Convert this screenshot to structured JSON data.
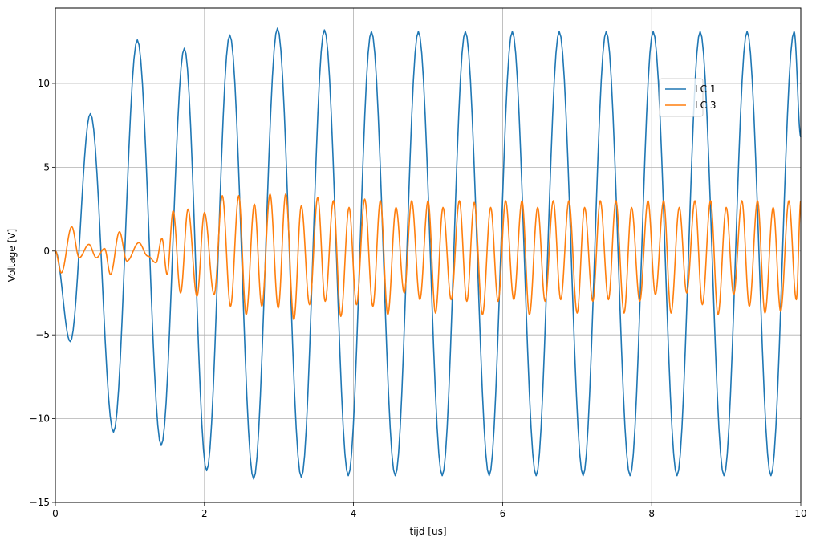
{
  "chart_data": {
    "type": "line",
    "title": "",
    "xlabel": "tijd [us]",
    "ylabel": "Voltage [V]",
    "xlim": [
      0,
      10
    ],
    "ylim": [
      -15,
      14.5
    ],
    "xticks": [
      0,
      2,
      4,
      6,
      8,
      10
    ],
    "xtick_labels": [
      "0",
      "2",
      "4",
      "6",
      "8",
      "10"
    ],
    "yticks": [
      -15,
      -10,
      -5,
      0,
      5,
      10
    ],
    "ytick_labels": [
      "−15",
      "−10",
      "−5",
      "0",
      "5",
      "10"
    ],
    "grid": true,
    "legend_position": "upper-right",
    "series": [
      {
        "name": "LC 1",
        "color": "#1f77b4",
        "x": [
          0,
          0.2,
          0.47,
          0.78,
          1.1,
          1.42,
          1.73,
          2.03,
          2.34,
          2.66,
          2.98,
          3.3,
          3.61,
          3.93,
          4.24,
          4.56,
          4.87,
          5.19,
          5.5,
          5.82,
          6.13,
          6.45,
          6.76,
          7.08,
          7.39,
          7.71,
          8.02,
          8.34,
          8.65,
          8.97,
          9.28,
          9.6,
          9.91,
          10
        ],
        "y": [
          0,
          -5.4,
          8.2,
          -10.8,
          12.6,
          -11.6,
          12.1,
          -13.1,
          12.9,
          -13.6,
          13.3,
          -13.5,
          13.2,
          -13.4,
          13.1,
          -13.4,
          13.1,
          -13.4,
          13.1,
          -13.4,
          13.1,
          -13.4,
          13.1,
          -13.4,
          13.1,
          -13.4,
          13.1,
          -13.4,
          13.1,
          -13.4,
          13.1,
          -13.4,
          13.1,
          6.8
        ]
      },
      {
        "name": "LC 3",
        "color": "#ff7f0e",
        "x": [
          0,
          0.08,
          0.22,
          0.32,
          0.45,
          0.55,
          0.66,
          0.74,
          0.86,
          0.96,
          1.12,
          1.24,
          1.35,
          1.43,
          1.5,
          1.58,
          1.68,
          1.78,
          1.9,
          2.0,
          2.13,
          2.24,
          2.35,
          2.46,
          2.56,
          2.67,
          2.77,
          2.88,
          2.99,
          3.09,
          3.2,
          3.3,
          3.41,
          3.52,
          3.62,
          3.73,
          3.83,
          3.94,
          4.04,
          4.15,
          4.26,
          4.36,
          4.46,
          4.57,
          4.68,
          4.78,
          4.89,
          5.0,
          5.1,
          5.2,
          5.31,
          5.42,
          5.52,
          5.62,
          5.73,
          5.84,
          5.94,
          6.04,
          6.15,
          6.26,
          6.36,
          6.47,
          6.57,
          6.68,
          6.78,
          6.89,
          7.0,
          7.1,
          7.21,
          7.31,
          7.42,
          7.52,
          7.63,
          7.73,
          7.84,
          7.95,
          8.05,
          8.16,
          8.26,
          8.37,
          8.47,
          8.58,
          8.68,
          8.79,
          8.89,
          9.0,
          9.1,
          9.21,
          9.31,
          9.42,
          9.52,
          9.63,
          9.73,
          9.84,
          9.94,
          10
        ],
        "y": [
          0,
          -1.3,
          1.45,
          -0.4,
          0.4,
          -0.4,
          0.15,
          -1.4,
          1.15,
          -0.6,
          0.5,
          -0.3,
          -0.7,
          0.75,
          -1.4,
          2.4,
          -2.5,
          2.5,
          -2.7,
          2.3,
          -2.6,
          3.3,
          -3.3,
          3.3,
          -3.8,
          2.8,
          -3.3,
          3.4,
          -3.4,
          3.4,
          -4.1,
          2.7,
          -3.2,
          3.2,
          -3.0,
          3.0,
          -3.9,
          2.6,
          -3.2,
          3.1,
          -3.3,
          3.0,
          -3.8,
          2.6,
          -2.5,
          3.0,
          -2.9,
          3.0,
          -3.7,
          2.6,
          -2.9,
          3.0,
          -3.0,
          2.9,
          -3.8,
          2.6,
          -3.0,
          3.0,
          -2.9,
          3.0,
          -3.8,
          2.6,
          -3.0,
          3.0,
          -2.9,
          3.0,
          -3.7,
          2.6,
          -3.0,
          3.0,
          -2.9,
          3.0,
          -3.7,
          2.6,
          -3.0,
          3.0,
          -2.6,
          3.0,
          -3.7,
          2.6,
          -2.5,
          3.0,
          -3.2,
          3.0,
          -3.8,
          2.6,
          -2.6,
          3.0,
          -3.3,
          3.0,
          -3.7,
          2.6,
          -3.6,
          3.0,
          -2.9,
          3.0
        ]
      }
    ]
  }
}
